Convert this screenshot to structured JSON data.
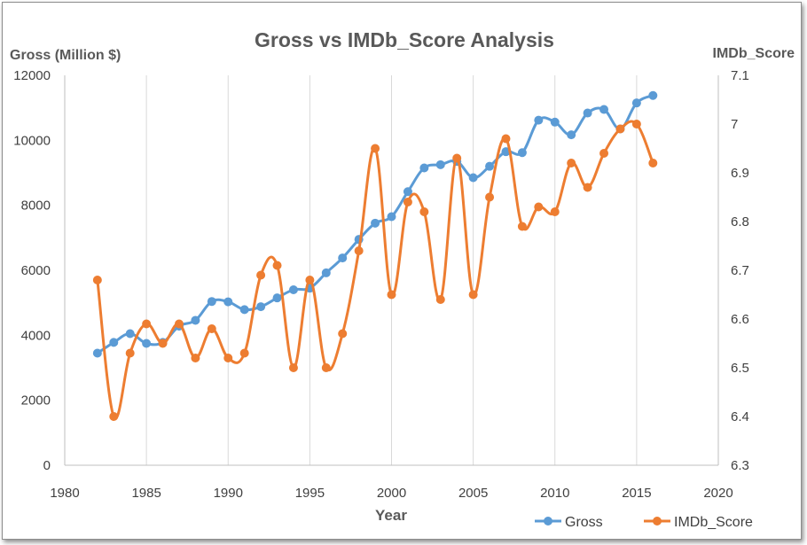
{
  "chart_data": {
    "type": "line",
    "title": "Gross vs IMDb_Score Analysis",
    "xlabel": "Year",
    "ylabel_left": "Gross (Million $)",
    "ylabel_right": "IMDb_Score",
    "xlim": [
      1980,
      2020
    ],
    "x_ticks": [
      "1980",
      "1985",
      "1990",
      "1995",
      "2000",
      "2005",
      "2010",
      "2015",
      "2020"
    ],
    "ylim_left": [
      0,
      12000
    ],
    "y_ticks_left": [
      "0",
      "2000",
      "4000",
      "6000",
      "8000",
      "10000",
      "12000"
    ],
    "ylim_right": [
      6.3,
      7.1
    ],
    "y_ticks_right": [
      "6.3",
      "6.4",
      "6.5",
      "6.6",
      "6.7",
      "6.8",
      "6.9",
      "7",
      "7.1"
    ],
    "grid": "vertical",
    "legend_position": "bottom-right",
    "x": [
      1982,
      1983,
      1984,
      1985,
      1986,
      1987,
      1988,
      1989,
      1990,
      1991,
      1992,
      1993,
      1994,
      1995,
      1996,
      1997,
      1998,
      1999,
      2000,
      2001,
      2002,
      2003,
      2004,
      2005,
      2006,
      2007,
      2008,
      2009,
      2010,
      2011,
      2012,
      2013,
      2014,
      2015,
      2016
    ],
    "series": [
      {
        "name": "Gross",
        "axis": "left",
        "color": "#5b9bd5",
        "values": [
          3450,
          3780,
          4050,
          3750,
          3780,
          4280,
          4460,
          5040,
          5030,
          4790,
          4880,
          5150,
          5400,
          5450,
          5920,
          6380,
          6950,
          7450,
          7650,
          8420,
          9150,
          9250,
          9350,
          8850,
          9200,
          9650,
          9620,
          10620,
          10560,
          10170,
          10840,
          10950,
          10350,
          11150,
          11380
        ]
      },
      {
        "name": "IMDb_Score",
        "axis": "right",
        "color": "#ed7d31",
        "values": [
          6.68,
          6.4,
          6.53,
          6.59,
          6.55,
          6.59,
          6.52,
          6.58,
          6.52,
          6.53,
          6.69,
          6.71,
          6.5,
          6.68,
          6.5,
          6.57,
          6.74,
          6.95,
          6.65,
          6.84,
          6.82,
          6.64,
          6.93,
          6.65,
          6.85,
          6.97,
          6.79,
          6.83,
          6.82,
          6.92,
          6.87,
          6.94,
          6.99,
          7.0,
          6.92
        ]
      }
    ]
  }
}
